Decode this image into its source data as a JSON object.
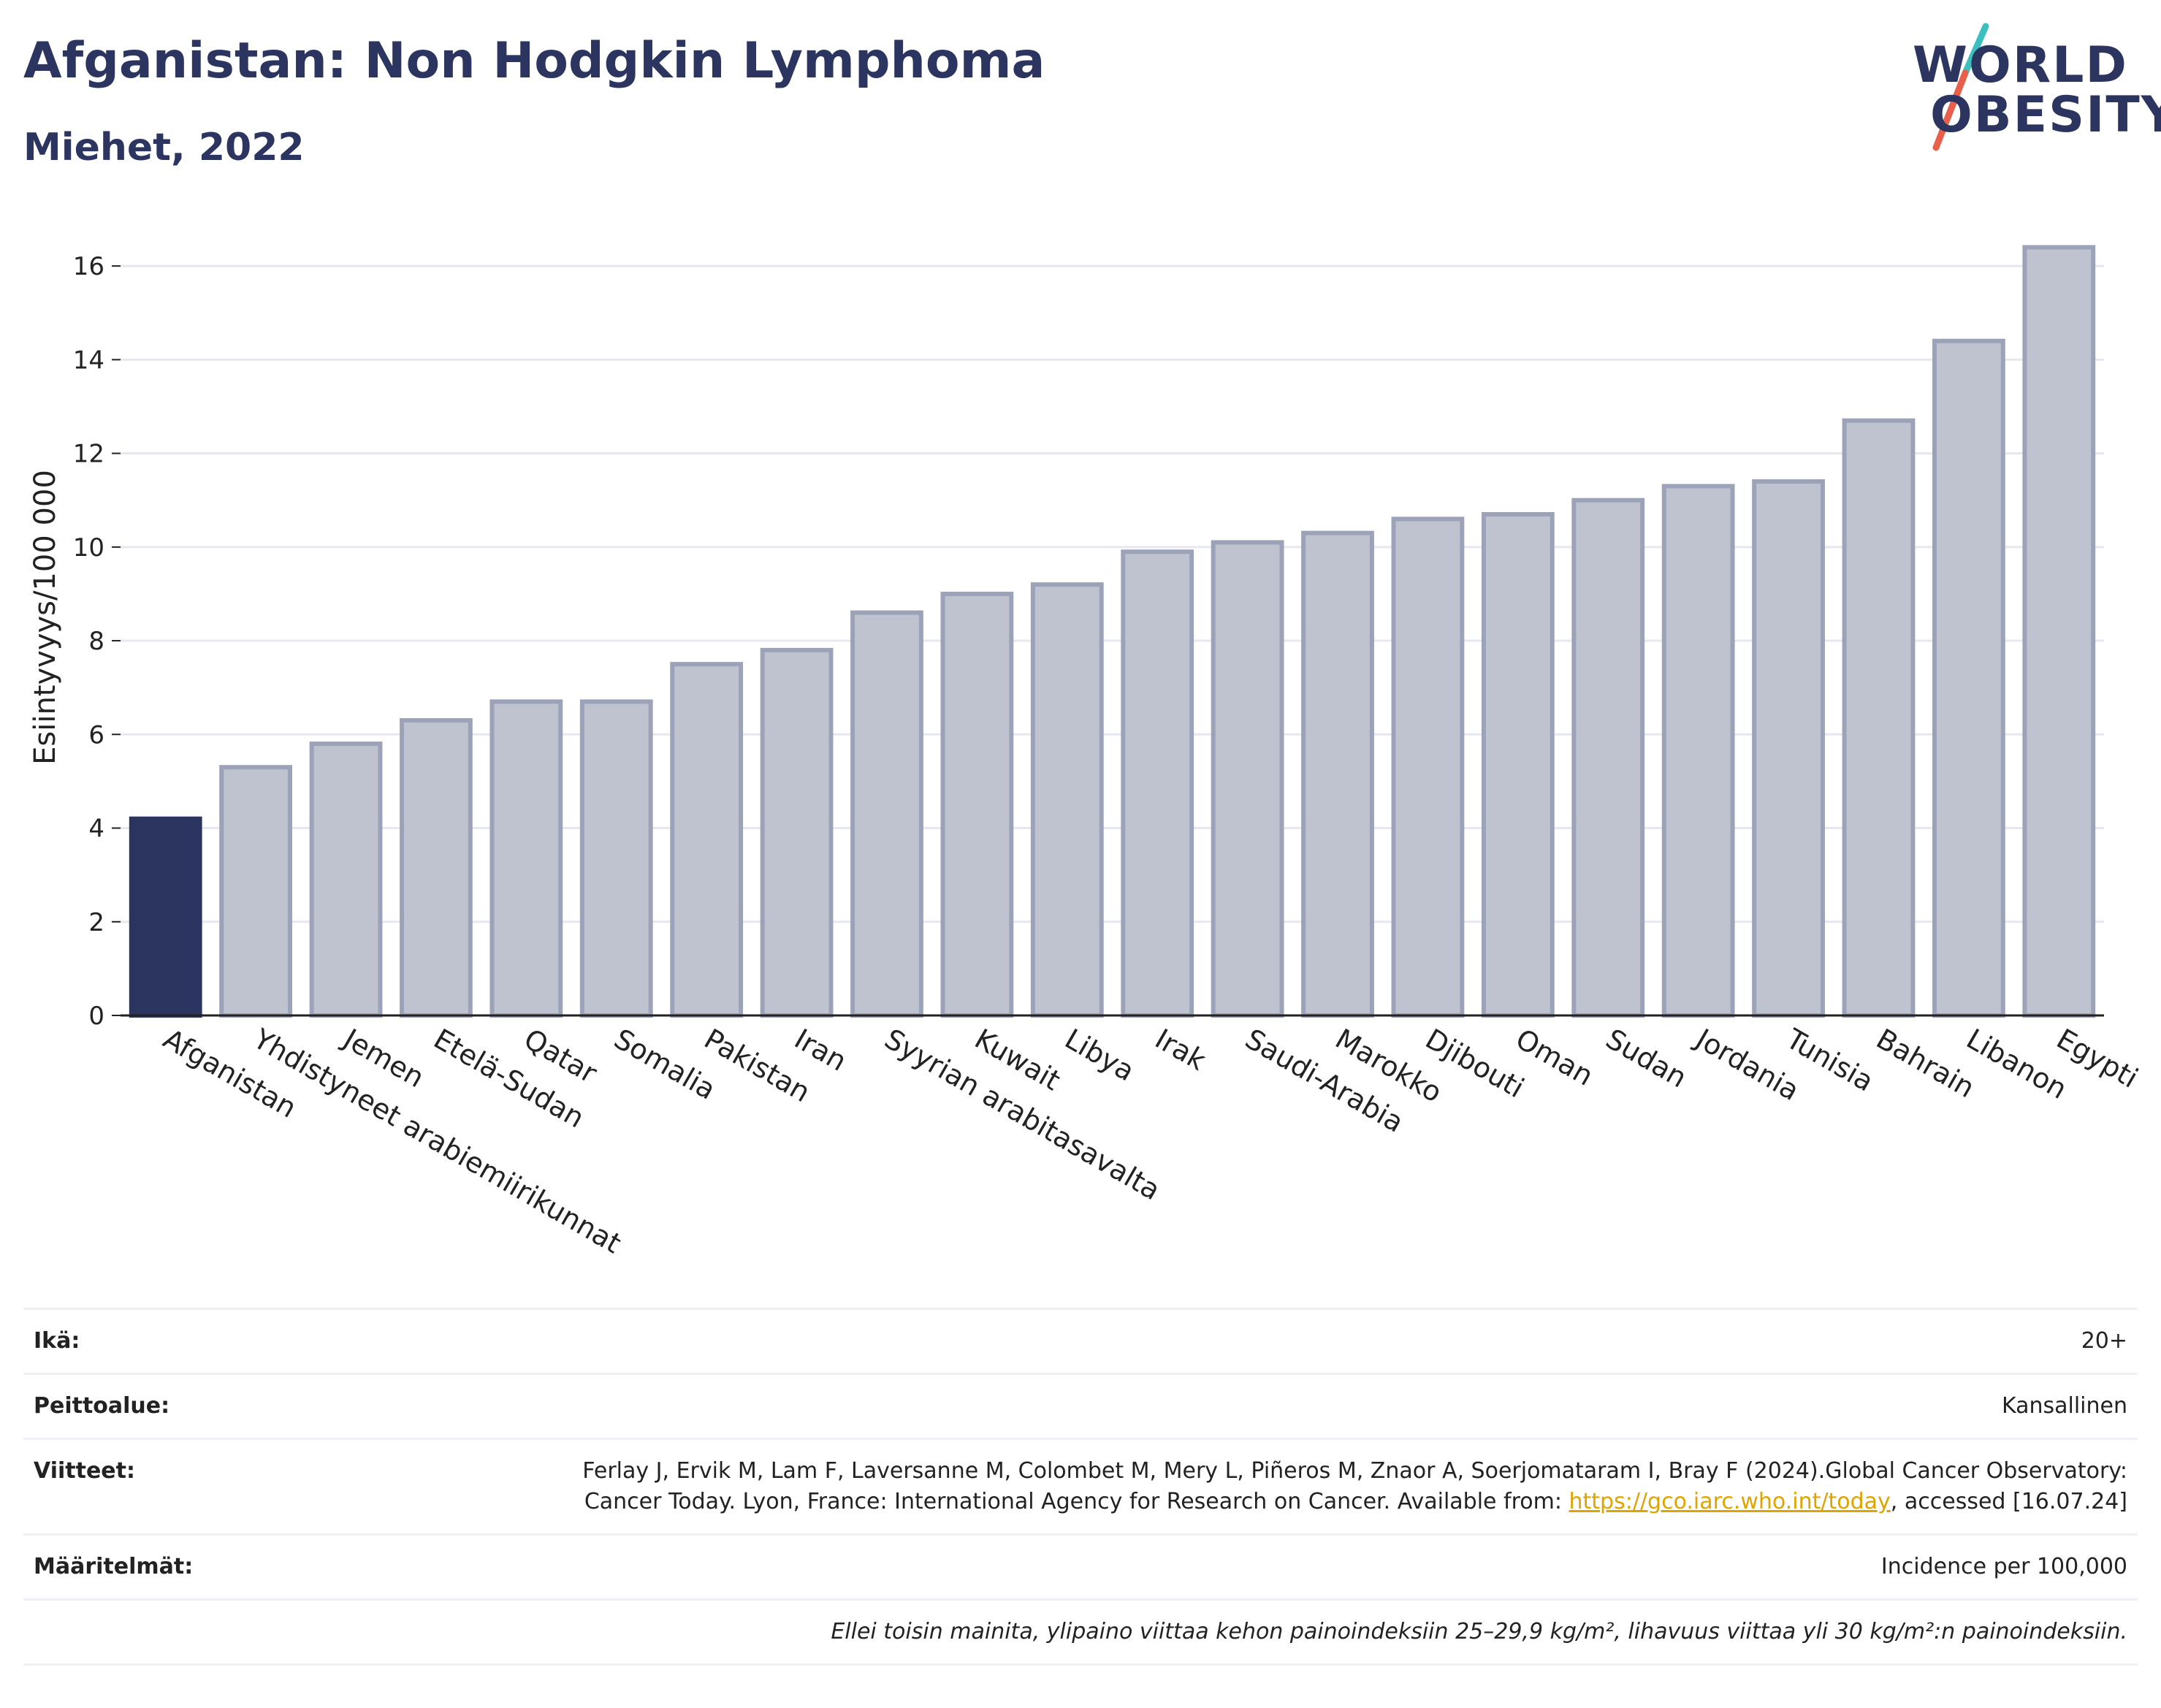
{
  "header": {
    "title": "Afganistan: Non Hodgkin Lymphoma",
    "subtitle": "Miehet, 2022"
  },
  "logo": {
    "line1": "WORLD",
    "line2": "OBESITY",
    "slash_colors": [
      "#3bbfbf",
      "#e8604c"
    ]
  },
  "chart_data": {
    "type": "bar",
    "title": "",
    "xlabel": "",
    "ylabel": "Esiintyvyys/100 000",
    "ylim": [
      0,
      17
    ],
    "yticks": [
      0,
      2,
      4,
      6,
      8,
      10,
      12,
      14,
      16
    ],
    "grid": true,
    "highlight_color": "#2b3560",
    "bar_color": "#bfc3d0",
    "bar_border_color": "#9ca2b8",
    "categories": [
      "Afganistan",
      "Yhdistyneet arabiemiirikunnat",
      "Jemen",
      "Etelä-Sudan",
      "Qatar",
      "Somalia",
      "Pakistan",
      "Iran",
      "Syyrian arabitasavalta",
      "Kuwait",
      "Libya",
      "Irak",
      "Saudi-Arabia",
      "Marokko",
      "Djibouti",
      "Oman",
      "Sudan",
      "Jordania",
      "Tunisia",
      "Bahrain",
      "Libanon",
      "Egypti"
    ],
    "values": [
      4.2,
      5.3,
      5.8,
      6.3,
      6.7,
      6.7,
      7.5,
      7.8,
      8.6,
      9.0,
      9.2,
      9.9,
      10.1,
      10.3,
      10.6,
      10.7,
      11.0,
      11.3,
      11.4,
      12.7,
      14.4,
      16.4
    ],
    "highlight_index": 0
  },
  "info": {
    "age_label": "Ikä:",
    "age_value": "20+",
    "coverage_label": "Peittoalue:",
    "coverage_value": "Kansallinen",
    "refs_label": "Viitteet:",
    "refs_text": "Ferlay J, Ervik M, Lam F, Laversanne M, Colombet M, Mery L, Piñeros M, Znaor A, Soerjomataram I, Bray F (2024).Global Cancer Observatory: Cancer Today. Lyon, France: International Agency for Research on Cancer. Available from: ",
    "refs_link": "https://gco.iarc.who.int/today",
    "refs_tail": ", accessed [16.07.24]",
    "defs_label": "Määritelmät:",
    "defs_value": "Incidence per 100,000",
    "note": "Ellei toisin mainita, ylipaino viittaa kehon painoindeksiin 25–29,9 kg/m², lihavuus viittaa yli 30 kg/m²:n painoindeksiin."
  }
}
